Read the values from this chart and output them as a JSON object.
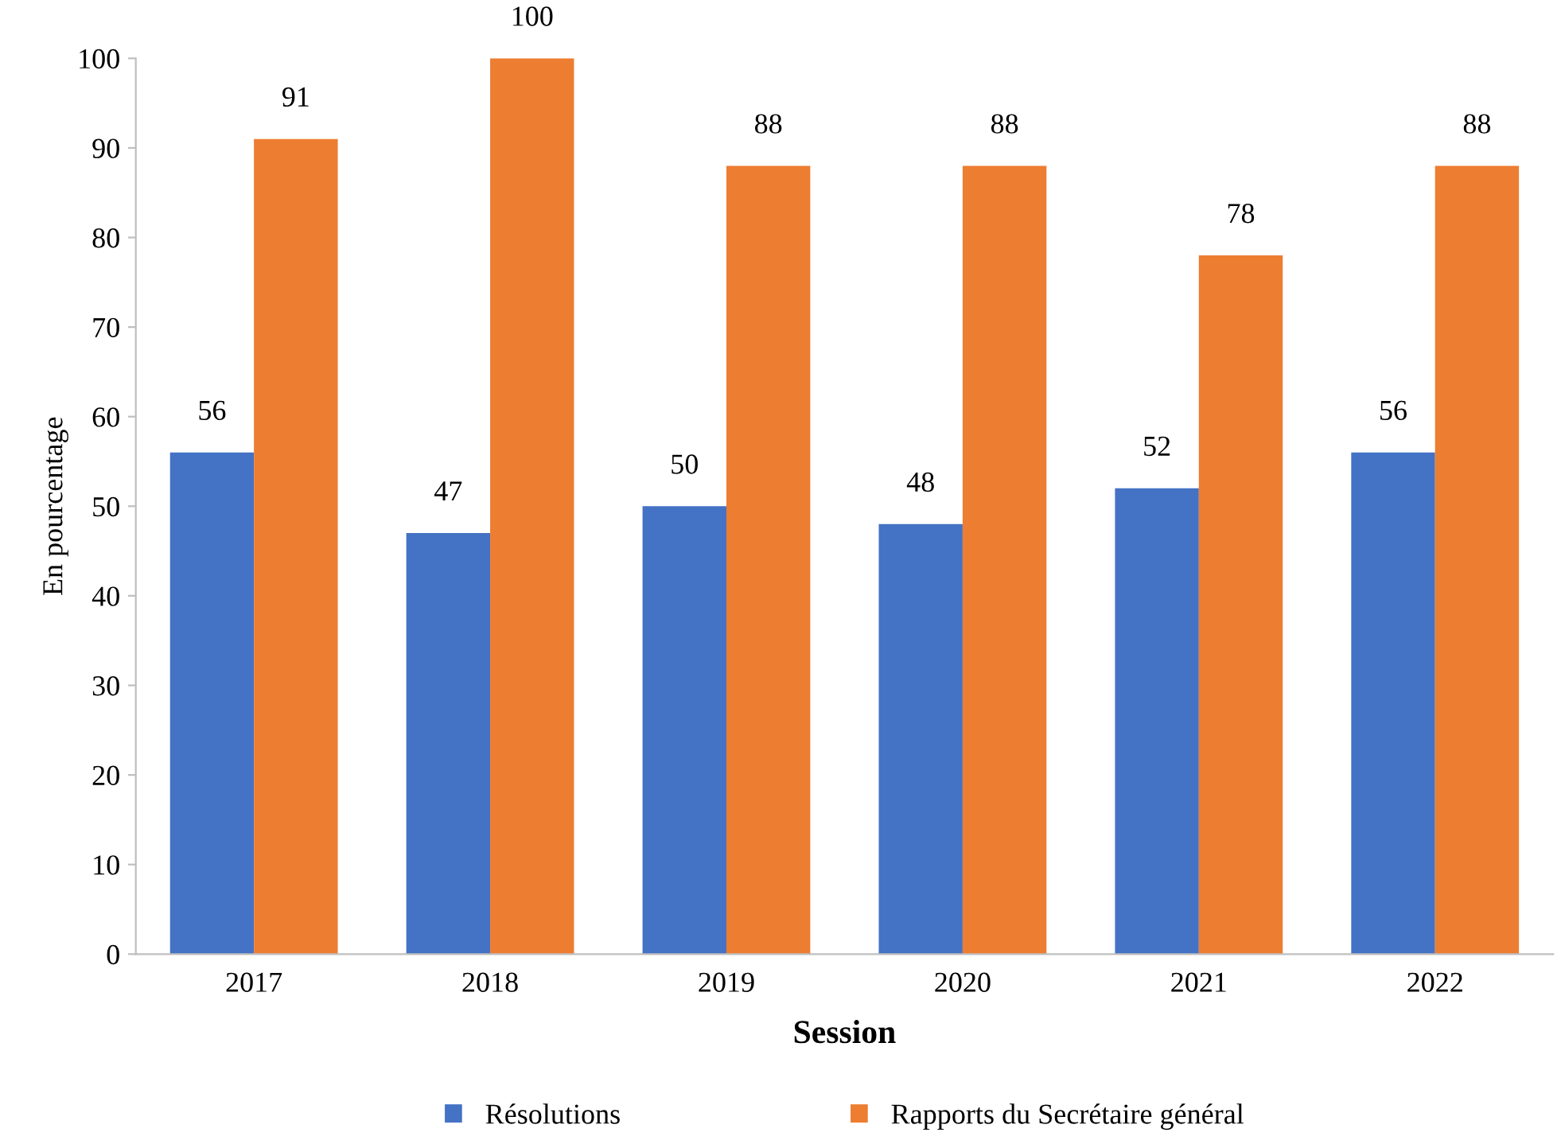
{
  "chart_data": {
    "type": "bar",
    "xlabel": "Session",
    "ylabel": "En pourcentage",
    "categories": [
      "2017",
      "2018",
      "2019",
      "2020",
      "2021",
      "2022"
    ],
    "series": [
      {
        "name": "Résolutions",
        "color": "#4472c4",
        "values": [
          56,
          47,
          50,
          48,
          52,
          56
        ]
      },
      {
        "name": "Rapports du Secrétaire général",
        "color": "#ed7d31",
        "values": [
          91,
          100,
          88,
          88,
          78,
          88
        ]
      }
    ],
    "ylim": [
      0,
      100
    ],
    "yticks": [
      0,
      10,
      20,
      30,
      40,
      50,
      60,
      70,
      80,
      90,
      100
    ],
    "data_labels": true,
    "legend": "bottom",
    "grid": false
  }
}
